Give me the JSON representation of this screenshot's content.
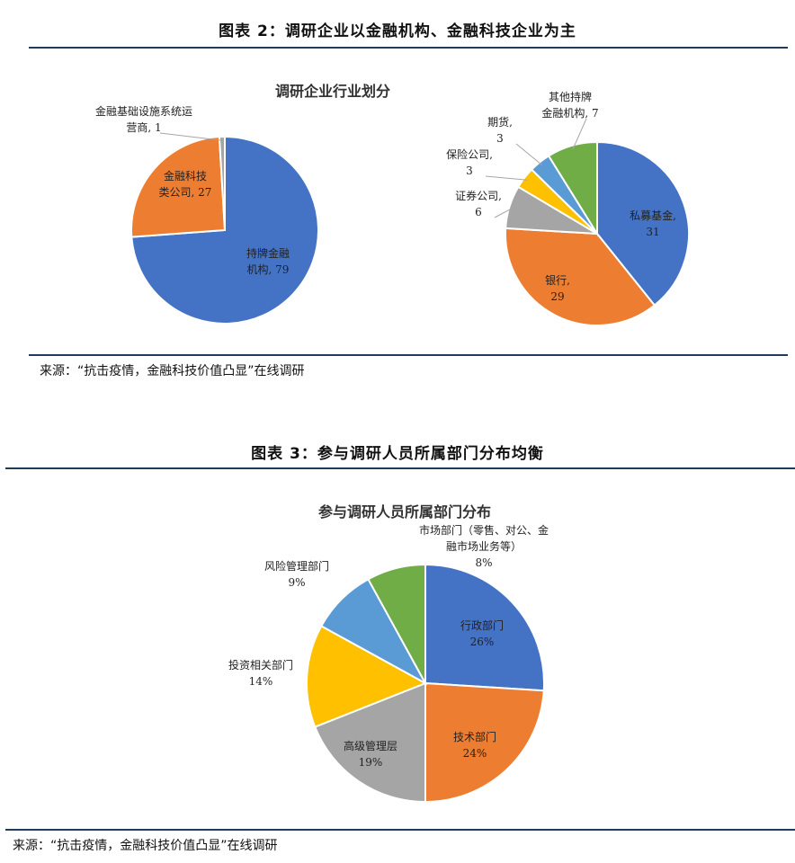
{
  "figure2": {
    "caption": "图表 2：调研企业以金融机构、金融科技企业为主",
    "source": "来源：“抗击疫情，金融科技价值凸显”在线调研"
  },
  "figure3": {
    "caption": "图表 3：参与调研人员所属部门分布均衡",
    "source": "来源：“抗击疫情，金融科技价值凸显”在线调研"
  },
  "colors": {
    "blue": "#4472c4",
    "orange": "#ed7d31",
    "gray": "#a5a5a5",
    "yellow": "#ffc000",
    "lightblue": "#5b9bd5",
    "green": "#70ad47",
    "rule": "#1f3b5a"
  },
  "chart_data": [
    {
      "type": "pie",
      "title": "调研企业行业划分",
      "slices": [
        {
          "label": "持牌金融\n机构",
          "value": 79,
          "text": "79",
          "color": "blue",
          "label_inside": true
        },
        {
          "label": "金融科技\n类公司",
          "value": 27,
          "text": "27",
          "color": "orange",
          "label_inside": true
        },
        {
          "label": "金融基础设施系统运\n营商",
          "value": 1,
          "text": "1",
          "color": "gray",
          "label_inside": false
        }
      ]
    },
    {
      "type": "pie",
      "title": "",
      "slices": [
        {
          "label": "私募基金",
          "value": 31,
          "text": "31",
          "color": "blue",
          "label_inside": true
        },
        {
          "label": "银行",
          "value": 29,
          "text": "29",
          "color": "orange",
          "label_inside": true
        },
        {
          "label": "证券公司",
          "value": 6,
          "text": "6",
          "color": "gray",
          "label_inside": false
        },
        {
          "label": "保险公司",
          "value": 3,
          "text": "3",
          "color": "yellow",
          "label_inside": false
        },
        {
          "label": "期货",
          "value": 3,
          "text": "3",
          "color": "lightblue",
          "label_inside": false
        },
        {
          "label": "其他持牌\n金融机构",
          "value": 7,
          "text": "7",
          "color": "green",
          "label_inside": false
        }
      ]
    },
    {
      "type": "pie",
      "title": "参与调研人员所属部门分布",
      "slices": [
        {
          "label": "行政部门",
          "value": 26,
          "text": "26%",
          "color": "blue",
          "label_inside": true
        },
        {
          "label": "技术部门",
          "value": 24,
          "text": "24%",
          "color": "orange",
          "label_inside": true
        },
        {
          "label": "高级管理层",
          "value": 19,
          "text": "19%",
          "color": "gray",
          "label_inside": true
        },
        {
          "label": "投资相关部门",
          "value": 14,
          "text": "14%",
          "color": "yellow",
          "label_inside": false
        },
        {
          "label": "风险管理部门",
          "value": 9,
          "text": "9%",
          "color": "lightblue",
          "label_inside": false
        },
        {
          "label": "市场部门（零售、对公、金\n融市场业务等）",
          "value": 8,
          "text": "8%",
          "color": "green",
          "label_inside": false
        }
      ]
    }
  ]
}
